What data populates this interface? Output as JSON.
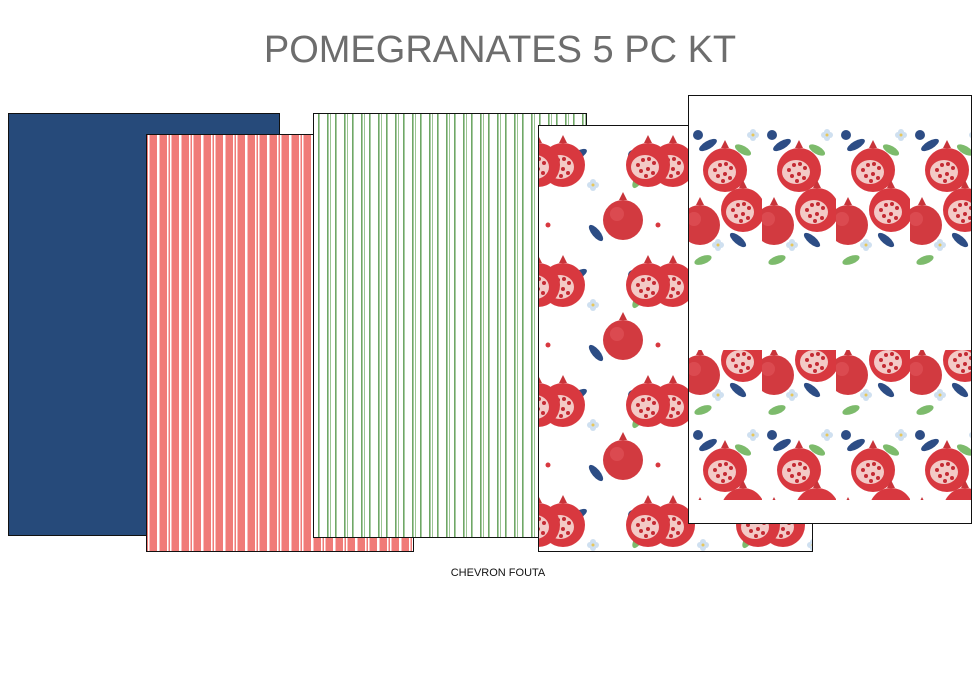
{
  "header": {
    "title": "POMEGRANATES 5 PC KT"
  },
  "caption": "CHEVRON FOUTA"
}
